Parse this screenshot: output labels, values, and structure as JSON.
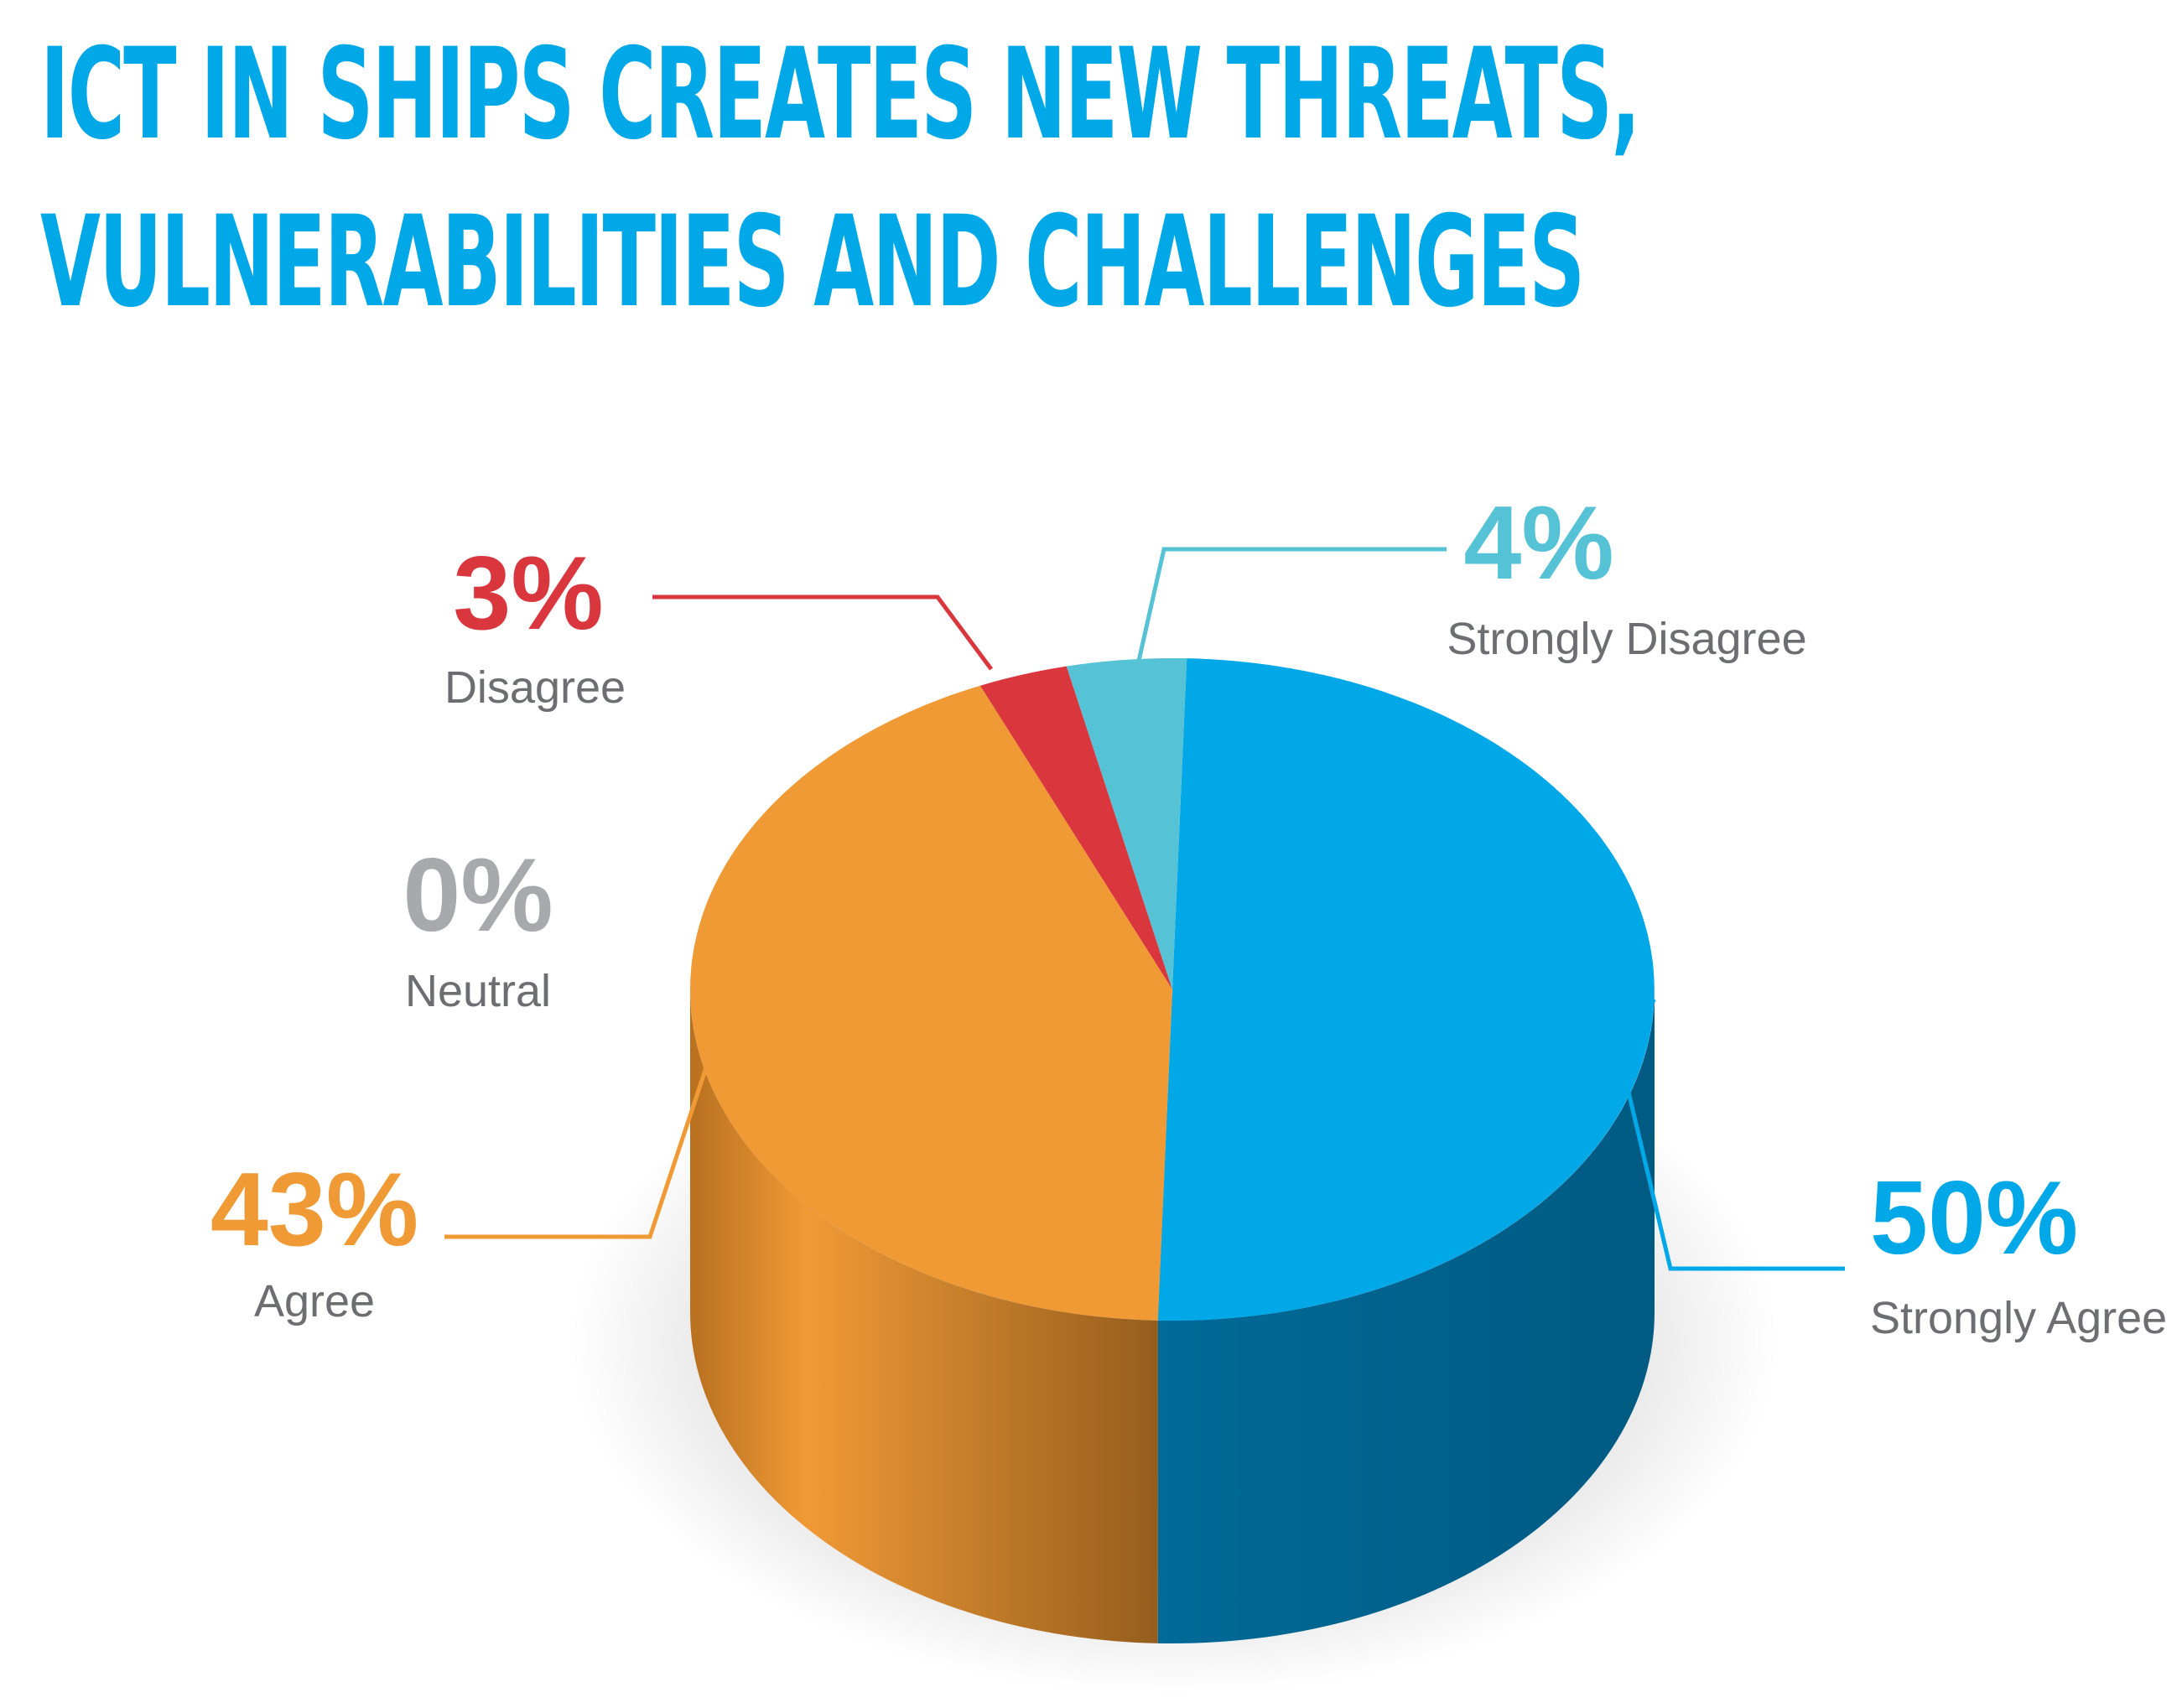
{
  "title": {
    "line1": "ICT IN SHIPS CREATES NEW THREATS,",
    "line2": "VULNERABILITIES AND CHALLENGES"
  },
  "chart_data": {
    "type": "pie",
    "title": "ICT IN SHIPS CREATES NEW THREATS, VULNERABILITIES AND CHALLENGES",
    "categories": [
      "Strongly Agree",
      "Agree",
      "Neutral",
      "Disagree",
      "Strongly Disagree"
    ],
    "values": [
      50,
      43,
      0,
      3,
      4
    ],
    "value_labels": [
      "50%",
      "43%",
      "0%",
      "3%",
      "4%"
    ],
    "colors": [
      "#00a8e8",
      "#f09a36",
      "#a7a9ac",
      "#d9363e",
      "#56c2d6"
    ],
    "style": "3d"
  }
}
